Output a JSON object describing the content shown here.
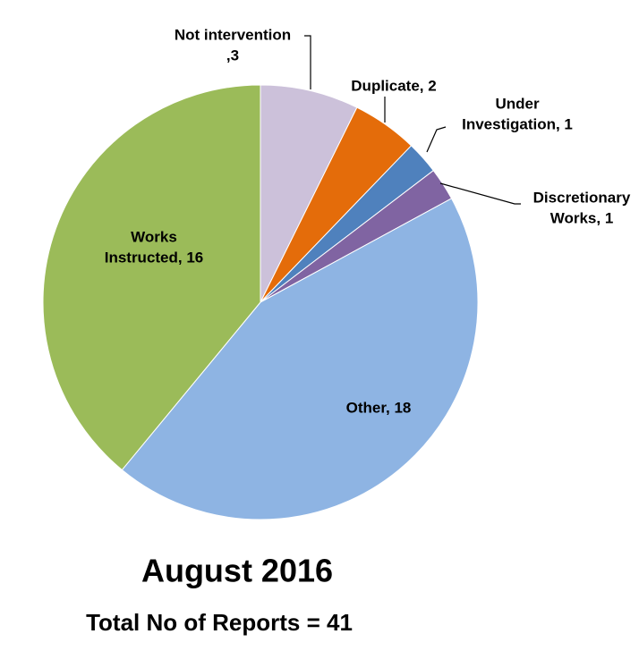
{
  "chart_data": {
    "type": "pie",
    "title": "August 2016",
    "subtitle": "Total No of Reports = 41",
    "categories": [
      "Not intervention",
      "Duplicate",
      "Under Investigation",
      "Discretionary Works",
      "Other",
      "Works Instructed"
    ],
    "values": [
      3,
      2,
      1,
      1,
      18,
      16
    ],
    "value_labels": [
      [
        "Not intervention",
        ",3"
      ],
      [
        "Duplicate, 2"
      ],
      [
        "Under",
        "Investigation, 1"
      ],
      [
        "Discretionary",
        "Works, 1"
      ],
      [
        "Other, 18"
      ],
      [
        "Works",
        "Instructed, 16"
      ]
    ],
    "colors": [
      "#ccc1da",
      "#e46c0a",
      "#4f81bd",
      "#8064a2",
      "#8eb4e3",
      "#9bbb59"
    ]
  }
}
